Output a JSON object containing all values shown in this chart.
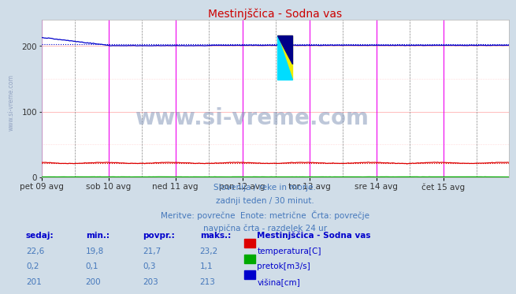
{
  "title": "Mestinjščica - Sodna vas",
  "bg_color": "#d0dde8",
  "plot_bg_color": "#ffffff",
  "x_tick_labels": [
    "pet 09 avg",
    "sob 10 avg",
    "ned 11 avg",
    "pon 12 avg",
    "tor 13 avg",
    "sre 14 avg",
    "čet 15 avg"
  ],
  "n_points": 336,
  "ylim": [
    0,
    240
  ],
  "yticks": [
    0,
    100,
    200
  ],
  "temperature_avg": 21.7,
  "temperature_min": 19.8,
  "temperature_max": 23.2,
  "temperature_current": 22.6,
  "pretok_avg": 0.3,
  "pretok_min": 0.1,
  "pretok_max": 1.1,
  "pretok_current": 0.2,
  "visina_avg": 203,
  "visina_min": 200,
  "visina_max": 213,
  "visina_current": 201,
  "temp_color": "#dd0000",
  "pretok_color": "#00aa00",
  "visina_color": "#0000cc",
  "magenta_vline_color": "#ee00ee",
  "grid_h_color": "#ffbbbb",
  "grid_v_color": "#ffcccc",
  "subtitle_color": "#4477bb",
  "table_label_color": "#0000cc",
  "table_data_color": "#4477bb",
  "subtitle_lines": [
    "Slovenija / reke in morje.",
    "zadnji teden / 30 minut.",
    "Meritve: povrečne  Enote: metrične  Črta: povrečje",
    "navpična črta - razdelek 24 ur"
  ],
  "watermark": "www.si-vreme.com",
  "left_label": "www.si-vreme.com"
}
